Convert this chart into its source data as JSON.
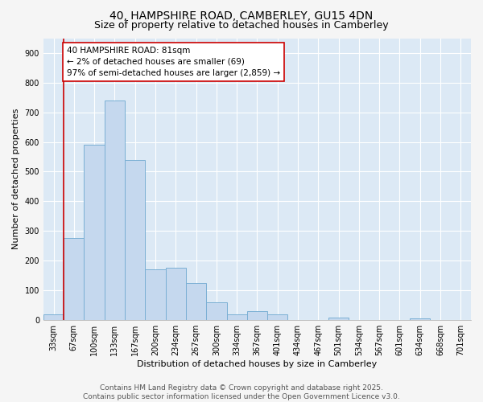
{
  "title": "40, HAMPSHIRE ROAD, CAMBERLEY, GU15 4DN",
  "subtitle": "Size of property relative to detached houses in Camberley",
  "xlabel": "Distribution of detached houses by size in Camberley",
  "ylabel": "Number of detached properties",
  "categories": [
    "33sqm",
    "67sqm",
    "100sqm",
    "133sqm",
    "167sqm",
    "200sqm",
    "234sqm",
    "267sqm",
    "300sqm",
    "334sqm",
    "367sqm",
    "401sqm",
    "434sqm",
    "467sqm",
    "501sqm",
    "534sqm",
    "567sqm",
    "601sqm",
    "634sqm",
    "668sqm",
    "701sqm"
  ],
  "values": [
    18,
    275,
    590,
    740,
    540,
    170,
    175,
    125,
    60,
    18,
    30,
    18,
    0,
    0,
    8,
    0,
    0,
    0,
    5,
    0,
    0
  ],
  "bar_color": "#c5d8ee",
  "bar_edge_color": "#7aafd4",
  "vline_color": "#cc0000",
  "vline_x_index": 1,
  "annotation_text": "40 HAMPSHIRE ROAD: 81sqm\n← 2% of detached houses are smaller (69)\n97% of semi-detached houses are larger (2,859) →",
  "annotation_box_edge_color": "#cc0000",
  "annotation_box_fill": "#ffffff",
  "ylim": [
    0,
    950
  ],
  "yticks": [
    0,
    100,
    200,
    300,
    400,
    500,
    600,
    700,
    800,
    900
  ],
  "plot_bg_color": "#dce9f5",
  "fig_bg_color": "#f5f5f5",
  "grid_color": "#ffffff",
  "footer_line1": "Contains HM Land Registry data © Crown copyright and database right 2025.",
  "footer_line2": "Contains public sector information licensed under the Open Government Licence v3.0.",
  "title_fontsize": 10,
  "subtitle_fontsize": 9,
  "axis_label_fontsize": 8,
  "tick_fontsize": 7,
  "footer_fontsize": 6.5,
  "annotation_fontsize": 7.5
}
